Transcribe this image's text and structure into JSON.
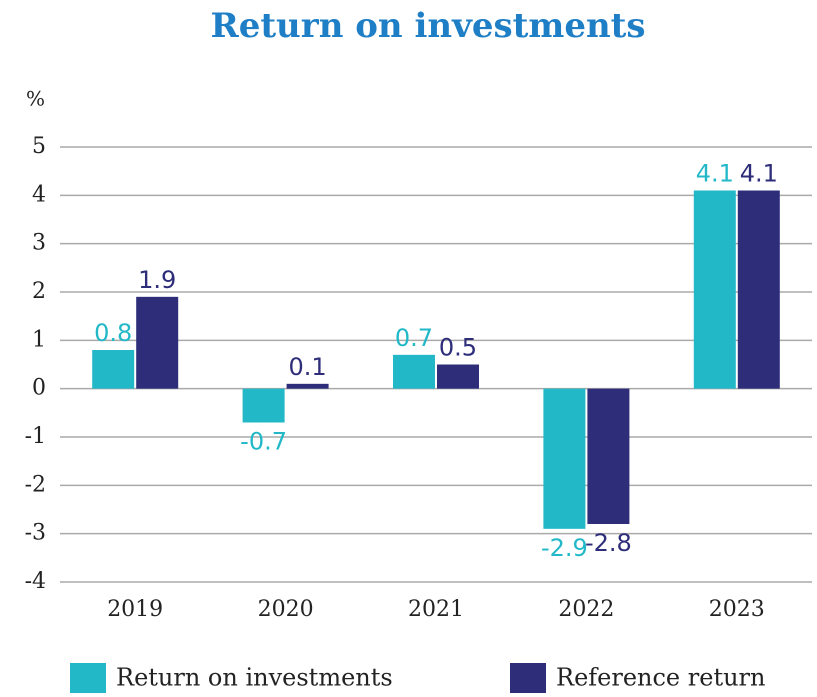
{
  "chart_data": {
    "type": "bar",
    "title": "Return on investments",
    "y_unit": "%",
    "categories": [
      "2019",
      "2020",
      "2021",
      "2022",
      "2023"
    ],
    "series": [
      {
        "name": "Return on investments",
        "color": "#22b8c8",
        "values": [
          0.8,
          -0.7,
          0.7,
          -2.9,
          4.1
        ]
      },
      {
        "name": "Reference return",
        "color": "#2e2d7a",
        "values": [
          1.9,
          0.1,
          0.5,
          -2.8,
          4.1
        ]
      }
    ],
    "ylim": [
      -4,
      5
    ],
    "yticks": [
      -4,
      -3,
      -2,
      -1,
      0,
      1,
      2,
      3,
      4,
      5
    ],
    "grid": true,
    "legend": "bottom"
  }
}
